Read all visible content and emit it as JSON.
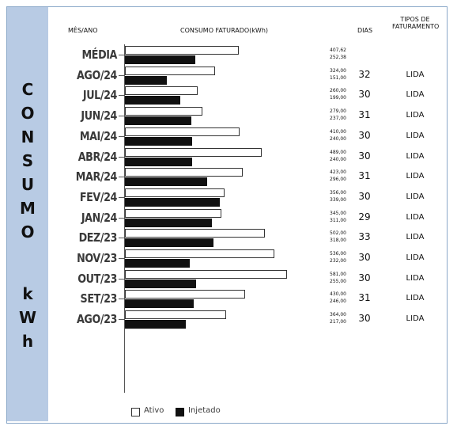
{
  "headers": {
    "month": "MÊS/ANO",
    "consumption": "CONSUMO FATURADO(kWh)",
    "days": "DIAS",
    "billing_type_line1": "TIPOS DE",
    "billing_type_line2": "FATURAMENTO"
  },
  "sidebar_letters": [
    "C",
    "O",
    "N",
    "S",
    "U",
    "M",
    "O",
    "k",
    "W",
    "h"
  ],
  "legend": {
    "ativo": "Ativo",
    "injetado": "Injetado"
  },
  "colors": {
    "sidebar": "#b8cbe4",
    "ativo": "#ffffff",
    "injetado": "#111111"
  },
  "chart_data": {
    "type": "bar",
    "orientation": "horizontal",
    "categories": [
      "MÉDIA",
      "AGO/24",
      "JUL/24",
      "JUN/24",
      "MAI/24",
      "ABR/24",
      "MAR/24",
      "FEV/24",
      "JAN/24",
      "DEZ/23",
      "NOV/23",
      "OUT/23",
      "SET/23",
      "AGO/23"
    ],
    "series": [
      {
        "name": "Ativo",
        "values": [
          407.62,
          324,
          260,
          279,
          410,
          489,
          423,
          356,
          345,
          502,
          536,
          581,
          430,
          364
        ]
      },
      {
        "name": "Injetado",
        "values": [
          252.38,
          151,
          199,
          237,
          240,
          240,
          296,
          339,
          311,
          318,
          232,
          255,
          246,
          217
        ]
      }
    ],
    "value_labels": {
      "ativo": [
        "407,62",
        "324,00",
        "260,00",
        "279,00",
        "410,00",
        "489,00",
        "423,00",
        "356,00",
        "345,00",
        "502,00",
        "536,00",
        "581,00",
        "430,00",
        "364,00"
      ],
      "injetado": [
        "252,38",
        "151,00",
        "199,00",
        "237,00",
        "240,00",
        "240,00",
        "296,00",
        "339,00",
        "311,00",
        "318,00",
        "232,00",
        "255,00",
        "246,00",
        "217,00"
      ]
    },
    "dias": [
      "",
      "32",
      "30",
      "31",
      "30",
      "30",
      "31",
      "30",
      "29",
      "33",
      "30",
      "30",
      "31",
      "30"
    ],
    "tipos": [
      "",
      "LIDA",
      "LIDA",
      "LIDA",
      "LIDA",
      "LIDA",
      "LIDA",
      "LIDA",
      "LIDA",
      "LIDA",
      "LIDA",
      "LIDA",
      "LIDA",
      "LIDA"
    ],
    "title": "",
    "xlabel": "CONSUMO FATURADO(kWh)",
    "ylabel": "MÊS/ANO",
    "xlim": [
      0,
      590
    ],
    "grid": false,
    "legend_position": "bottom-left"
  }
}
